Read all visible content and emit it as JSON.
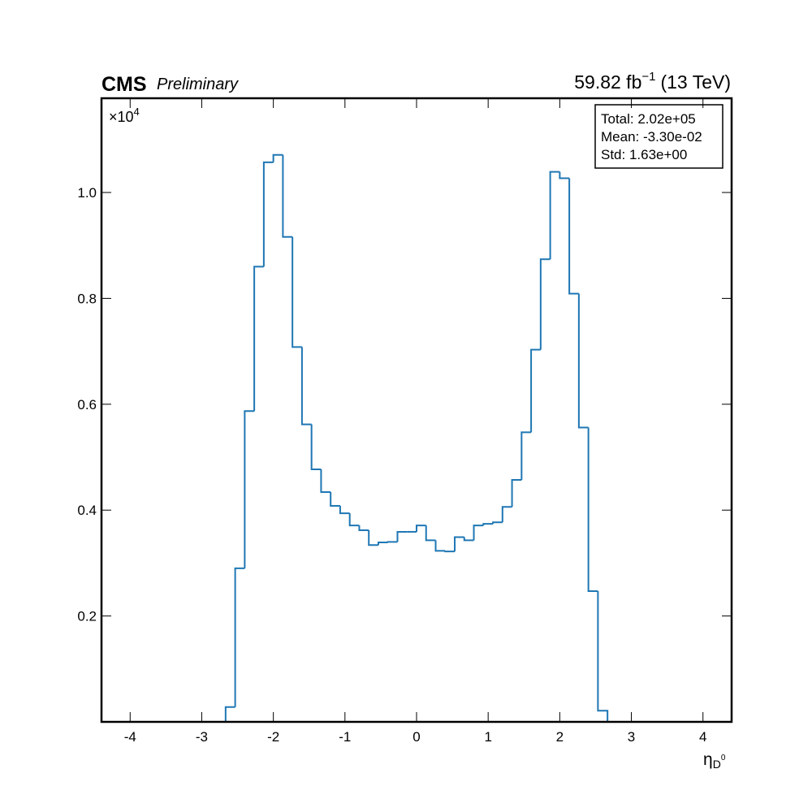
{
  "chart_data": {
    "type": "histogram",
    "experiment": "CMS",
    "status": "Preliminary",
    "luminosity": "59.82 fb",
    "luminosity_exponent": "−1",
    "energy": "(13 TeV)",
    "x_label": "η",
    "x_label_sub": "D",
    "x_label_sup": "0",
    "y_multiplier": "×10",
    "y_multiplier_exponent": "4",
    "stats": [
      "Total: 2.02e+05",
      "Mean: -3.30e-02",
      "Std: 1.63e+00"
    ],
    "color": "#1f77b4",
    "bins": [
      -2.6667,
      -2.5333,
      -2.4,
      -2.2667,
      -2.1333,
      -2,
      -1.8667,
      -1.7333,
      -1.6,
      -1.4667,
      -1.3333,
      -1.2,
      -1.0667,
      -0.9333,
      -0.8,
      -0.6667,
      -0.5333,
      -0.4,
      -0.2667,
      -0.1333,
      0,
      0.1333,
      0.2667,
      0.4,
      0.5333,
      0.6667,
      0.8,
      0.9333,
      1.0667,
      1.2,
      1.3333,
      1.4667,
      1.6,
      1.7333,
      1.8667,
      2,
      2.1333,
      2.2667,
      2.4,
      2.5333,
      2.6667
    ],
    "values": [
      0.028,
      0.29,
      0.587,
      0.86,
      1.057,
      1.071,
      0.916,
      0.708,
      0.562,
      0.477,
      0.434,
      0.408,
      0.394,
      0.371,
      0.362,
      0.334,
      0.339,
      0.34,
      0.359,
      0.359,
      0.371,
      0.343,
      0.323,
      0.322,
      0.349,
      0.343,
      0.371,
      0.374,
      0.377,
      0.406,
      0.457,
      0.547,
      0.703,
      0.874,
      1.039,
      1.027,
      0.809,
      0.556,
      0.247,
      0.021
    ],
    "xlim": [
      -4.4,
      4.4
    ],
    "xticks": [
      -4,
      -3,
      -2,
      -1,
      0,
      1,
      2,
      3,
      4
    ],
    "ylim": [
      0,
      1.178
    ],
    "yticks": [
      0.2,
      0.4,
      0.6,
      0.8,
      {
        "value": 1,
        "label": "1.0"
      }
    ]
  }
}
